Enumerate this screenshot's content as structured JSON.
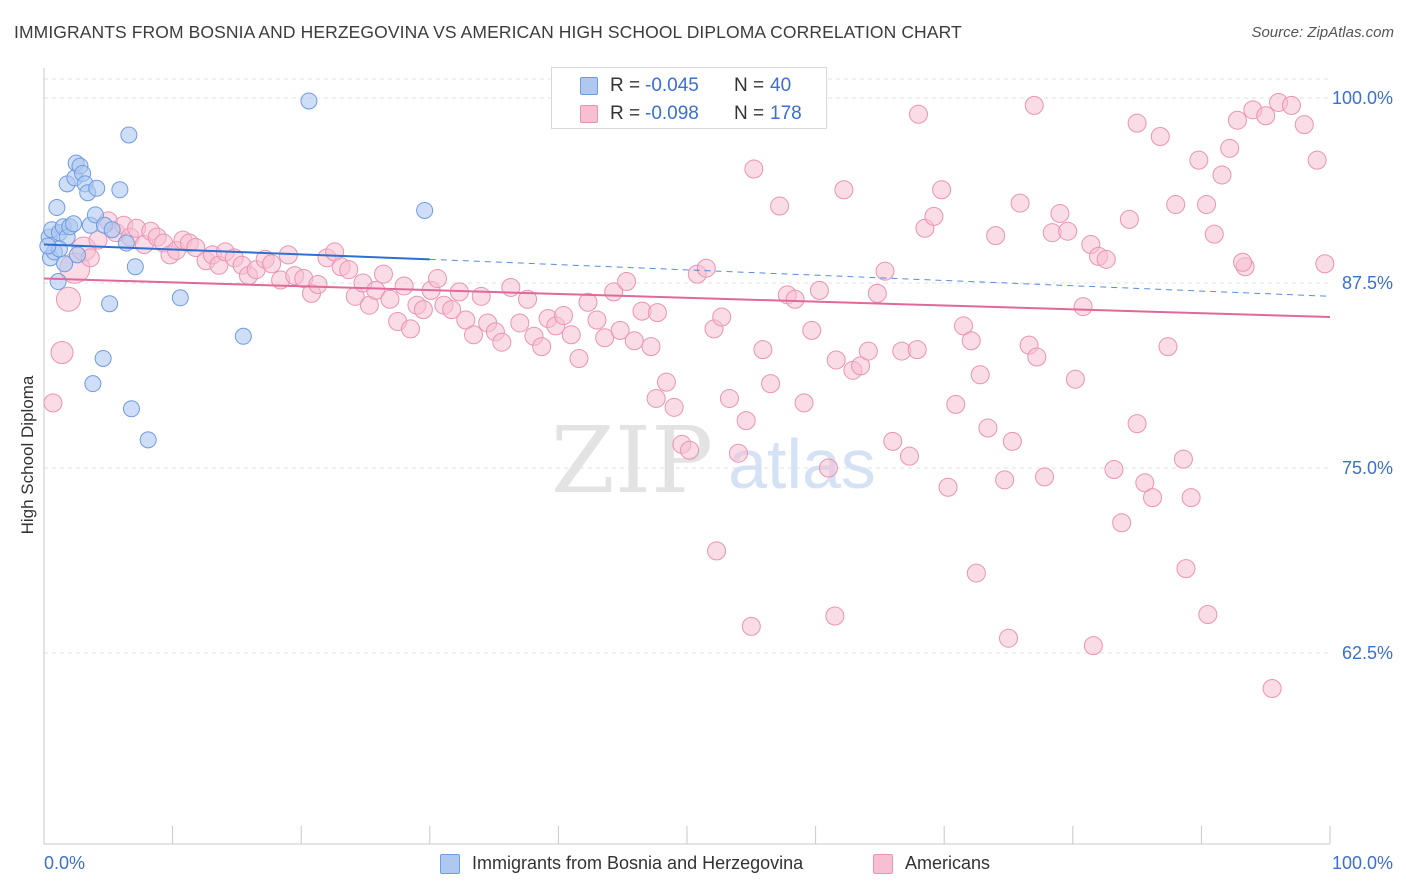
{
  "title": "IMMIGRANTS FROM BOSNIA AND HERZEGOVINA VS AMERICAN HIGH SCHOOL DIPLOMA CORRELATION CHART",
  "source": "Source: ZipAtlas.com",
  "watermark": {
    "zip": "ZIP",
    "atlas": "atlas"
  },
  "legend_top": {
    "rows": [
      {
        "r_label": "R =",
        "r_value": "-0.045",
        "n_label": "N =",
        "n_value": "40"
      },
      {
        "r_label": "R =",
        "r_value": "-0.098",
        "n_label": "N =",
        "n_value": "178"
      }
    ]
  },
  "legend_bottom": {
    "items": [
      {
        "label": "Immigrants from Bosnia and Herzegovina"
      },
      {
        "label": "Americans"
      }
    ]
  },
  "colors": {
    "blue_fill": "#aec8f0",
    "blue_stroke": "#6f9be0",
    "blue_line": "#2f6fd0",
    "pink_fill": "#f6c0d2",
    "pink_stroke": "#eb93b3",
    "pink_line": "#e0689a",
    "grid": "#e0e0e0",
    "tick_label": "#3b6fd0"
  },
  "chart_data": {
    "type": "scatter",
    "title": "IMMIGRANTS FROM BOSNIA AND HERZEGOVINA VS AMERICAN HIGH SCHOOL DIPLOMA CORRELATION CHART",
    "xlabel": "",
    "ylabel": "High School Diploma",
    "xlim": [
      0,
      100
    ],
    "ylim": [
      50,
      102
    ],
    "x_tick_labels": [
      "0.0%",
      "100.0%"
    ],
    "y_ticks": [
      {
        "value": 100,
        "label": "100.0%"
      },
      {
        "value": 87.5,
        "label": "87.5%"
      },
      {
        "value": 75,
        "label": "75.0%"
      },
      {
        "value": 62.5,
        "label": "62.5%"
      }
    ],
    "grid": "horizontal dashed",
    "legend_placement": "bottom",
    "series": [
      {
        "name": "Immigrants from Bosnia and Herzegovina",
        "color": "blue",
        "r": -0.045,
        "n": 40,
        "trend": {
          "solid_x": [
            0,
            30
          ],
          "y": [
            90.1,
            89.1
          ],
          "dashed_x": [
            30,
            100
          ],
          "y_end": 86.6
        },
        "points": [
          [
            0.4,
            90.6
          ],
          [
            0.6,
            91.1
          ],
          [
            0.5,
            89.2
          ],
          [
            0.8,
            89.6
          ],
          [
            1.0,
            92.6
          ],
          [
            1.2,
            90.9
          ],
          [
            1.5,
            91.3
          ],
          [
            1.8,
            90.6
          ],
          [
            2.0,
            91.3
          ],
          [
            1.6,
            88.8
          ],
          [
            2.3,
            91.5
          ],
          [
            2.6,
            89.4
          ],
          [
            1.8,
            94.2
          ],
          [
            2.4,
            94.6
          ],
          [
            2.5,
            95.6
          ],
          [
            2.8,
            95.4
          ],
          [
            3.0,
            94.9
          ],
          [
            3.2,
            94.2
          ],
          [
            3.4,
            93.6
          ],
          [
            3.6,
            91.4
          ],
          [
            4.1,
            93.9
          ],
          [
            4.0,
            92.1
          ],
          [
            4.7,
            91.4
          ],
          [
            5.3,
            91.1
          ],
          [
            5.9,
            93.8
          ],
          [
            6.4,
            90.2
          ],
          [
            6.6,
            97.5
          ],
          [
            5.1,
            86.1
          ],
          [
            7.1,
            88.6
          ],
          [
            10.6,
            86.5
          ],
          [
            4.6,
            82.4
          ],
          [
            3.8,
            80.7
          ],
          [
            6.8,
            79.0
          ],
          [
            8.1,
            76.9
          ],
          [
            15.5,
            83.9
          ],
          [
            20.6,
            99.8
          ],
          [
            29.6,
            92.4
          ],
          [
            1.1,
            87.6
          ],
          [
            1.2,
            89.8
          ],
          [
            0.3,
            90.0
          ]
        ]
      },
      {
        "name": "Americans",
        "color": "pink",
        "r": -0.098,
        "n": 178,
        "trend": {
          "x": [
            0,
            100
          ],
          "y": [
            87.8,
            85.2
          ]
        },
        "points": [
          [
            0.7,
            79.4
          ],
          [
            1.4,
            82.8
          ],
          [
            1.9,
            86.4
          ],
          [
            2.4,
            88.5
          ],
          [
            3.1,
            89.8
          ],
          [
            3.6,
            89.2
          ],
          [
            4.2,
            90.4
          ],
          [
            5.0,
            91.7
          ],
          [
            5.6,
            90.9
          ],
          [
            6.2,
            91.4
          ],
          [
            6.7,
            90.6
          ],
          [
            7.2,
            91.2
          ],
          [
            7.8,
            90.1
          ],
          [
            8.3,
            91.0
          ],
          [
            8.8,
            90.6
          ],
          [
            9.3,
            90.2
          ],
          [
            9.8,
            89.4
          ],
          [
            10.3,
            89.7
          ],
          [
            10.8,
            90.4
          ],
          [
            11.3,
            90.2
          ],
          [
            11.8,
            89.9
          ],
          [
            12.6,
            89.0
          ],
          [
            13.1,
            89.4
          ],
          [
            13.6,
            88.7
          ],
          [
            14.1,
            89.6
          ],
          [
            14.8,
            89.2
          ],
          [
            15.4,
            88.7
          ],
          [
            15.9,
            88.0
          ],
          [
            16.5,
            88.4
          ],
          [
            17.2,
            89.1
          ],
          [
            17.7,
            88.8
          ],
          [
            18.4,
            87.7
          ],
          [
            19.0,
            89.4
          ],
          [
            19.5,
            88.0
          ],
          [
            20.2,
            87.8
          ],
          [
            20.8,
            86.8
          ],
          [
            21.3,
            87.4
          ],
          [
            22.0,
            89.2
          ],
          [
            22.6,
            89.6
          ],
          [
            23.1,
            88.6
          ],
          [
            23.7,
            88.4
          ],
          [
            24.2,
            86.6
          ],
          [
            24.8,
            87.5
          ],
          [
            25.3,
            86.0
          ],
          [
            25.8,
            87.0
          ],
          [
            26.4,
            88.1
          ],
          [
            26.9,
            86.4
          ],
          [
            27.5,
            84.9
          ],
          [
            28.0,
            87.3
          ],
          [
            28.5,
            84.4
          ],
          [
            29.0,
            86.0
          ],
          [
            29.5,
            85.7
          ],
          [
            30.1,
            87.0
          ],
          [
            30.6,
            87.8
          ],
          [
            31.1,
            86.0
          ],
          [
            31.7,
            85.7
          ],
          [
            32.3,
            86.9
          ],
          [
            32.8,
            85.0
          ],
          [
            33.4,
            84.0
          ],
          [
            34.0,
            86.6
          ],
          [
            34.5,
            84.8
          ],
          [
            35.1,
            84.2
          ],
          [
            35.6,
            83.5
          ],
          [
            36.3,
            87.2
          ],
          [
            37.0,
            84.8
          ],
          [
            37.6,
            86.4
          ],
          [
            38.1,
            83.9
          ],
          [
            38.7,
            83.2
          ],
          [
            39.2,
            85.1
          ],
          [
            39.8,
            84.6
          ],
          [
            40.4,
            85.3
          ],
          [
            41.0,
            84.0
          ],
          [
            41.6,
            82.4
          ],
          [
            42.3,
            86.2
          ],
          [
            43.0,
            85.0
          ],
          [
            43.6,
            83.8
          ],
          [
            44.3,
            86.9
          ],
          [
            44.8,
            84.3
          ],
          [
            45.3,
            87.6
          ],
          [
            45.9,
            83.6
          ],
          [
            46.5,
            85.6
          ],
          [
            47.2,
            83.2
          ],
          [
            47.7,
            85.5
          ],
          [
            48.4,
            80.8
          ],
          [
            49.0,
            79.1
          ],
          [
            49.6,
            76.6
          ],
          [
            50.2,
            76.2
          ],
          [
            50.8,
            88.1
          ],
          [
            51.5,
            88.5
          ],
          [
            52.1,
            84.4
          ],
          [
            52.7,
            85.2
          ],
          [
            53.3,
            79.7
          ],
          [
            54.0,
            76.0
          ],
          [
            54.6,
            78.2
          ],
          [
            55.2,
            95.2
          ],
          [
            55.9,
            83.0
          ],
          [
            56.5,
            80.7
          ],
          [
            57.2,
            92.7
          ],
          [
            57.8,
            86.7
          ],
          [
            58.4,
            86.4
          ],
          [
            59.1,
            79.4
          ],
          [
            59.7,
            84.3
          ],
          [
            60.3,
            87.0
          ],
          [
            61.0,
            75.0
          ],
          [
            61.6,
            82.3
          ],
          [
            62.2,
            93.8
          ],
          [
            62.9,
            81.6
          ],
          [
            63.5,
            81.9
          ],
          [
            64.1,
            82.9
          ],
          [
            64.8,
            86.8
          ],
          [
            65.4,
            88.3
          ],
          [
            66.0,
            76.8
          ],
          [
            66.7,
            82.9
          ],
          [
            67.3,
            75.8
          ],
          [
            67.9,
            83.0
          ],
          [
            68.5,
            91.2
          ],
          [
            69.2,
            92.0
          ],
          [
            69.8,
            93.8
          ],
          [
            70.3,
            73.7
          ],
          [
            70.9,
            79.3
          ],
          [
            71.5,
            84.6
          ],
          [
            72.1,
            83.6
          ],
          [
            72.8,
            81.3
          ],
          [
            73.4,
            77.7
          ],
          [
            74.0,
            90.7
          ],
          [
            74.7,
            74.2
          ],
          [
            75.3,
            76.8
          ],
          [
            75.9,
            92.9
          ],
          [
            76.6,
            83.3
          ],
          [
            77.2,
            82.5
          ],
          [
            77.8,
            74.4
          ],
          [
            78.4,
            90.9
          ],
          [
            79.0,
            92.2
          ],
          [
            79.6,
            91.0
          ],
          [
            80.2,
            81.0
          ],
          [
            80.8,
            85.9
          ],
          [
            81.4,
            90.1
          ],
          [
            82.0,
            89.3
          ],
          [
            82.6,
            89.1
          ],
          [
            83.2,
            74.9
          ],
          [
            83.8,
            71.3
          ],
          [
            84.4,
            91.8
          ],
          [
            85.0,
            78.0
          ],
          [
            85.6,
            74.0
          ],
          [
            86.2,
            73.0
          ],
          [
            86.8,
            97.4
          ],
          [
            87.4,
            83.2
          ],
          [
            88.0,
            92.8
          ],
          [
            88.6,
            75.6
          ],
          [
            89.2,
            73.0
          ],
          [
            89.8,
            95.8
          ],
          [
            90.4,
            92.8
          ],
          [
            91.0,
            90.8
          ],
          [
            91.6,
            94.8
          ],
          [
            92.2,
            96.6
          ],
          [
            92.8,
            98.5
          ],
          [
            93.4,
            88.6
          ],
          [
            94.0,
            99.2
          ],
          [
            95.0,
            98.8
          ],
          [
            96.0,
            99.7
          ],
          [
            97.0,
            99.5
          ],
          [
            98.0,
            98.2
          ],
          [
            99.0,
            95.8
          ],
          [
            99.6,
            88.8
          ],
          [
            85.0,
            98.3
          ],
          [
            77.0,
            99.5
          ],
          [
            68.0,
            98.9
          ],
          [
            61.5,
            65.0
          ],
          [
            72.5,
            67.9
          ],
          [
            75.0,
            63.5
          ],
          [
            81.6,
            63.0
          ],
          [
            88.8,
            68.2
          ],
          [
            90.5,
            65.1
          ],
          [
            95.5,
            60.1
          ],
          [
            55.0,
            64.3
          ],
          [
            47.6,
            79.7
          ],
          [
            52.3,
            69.4
          ],
          [
            93.2,
            88.9
          ]
        ]
      }
    ]
  }
}
